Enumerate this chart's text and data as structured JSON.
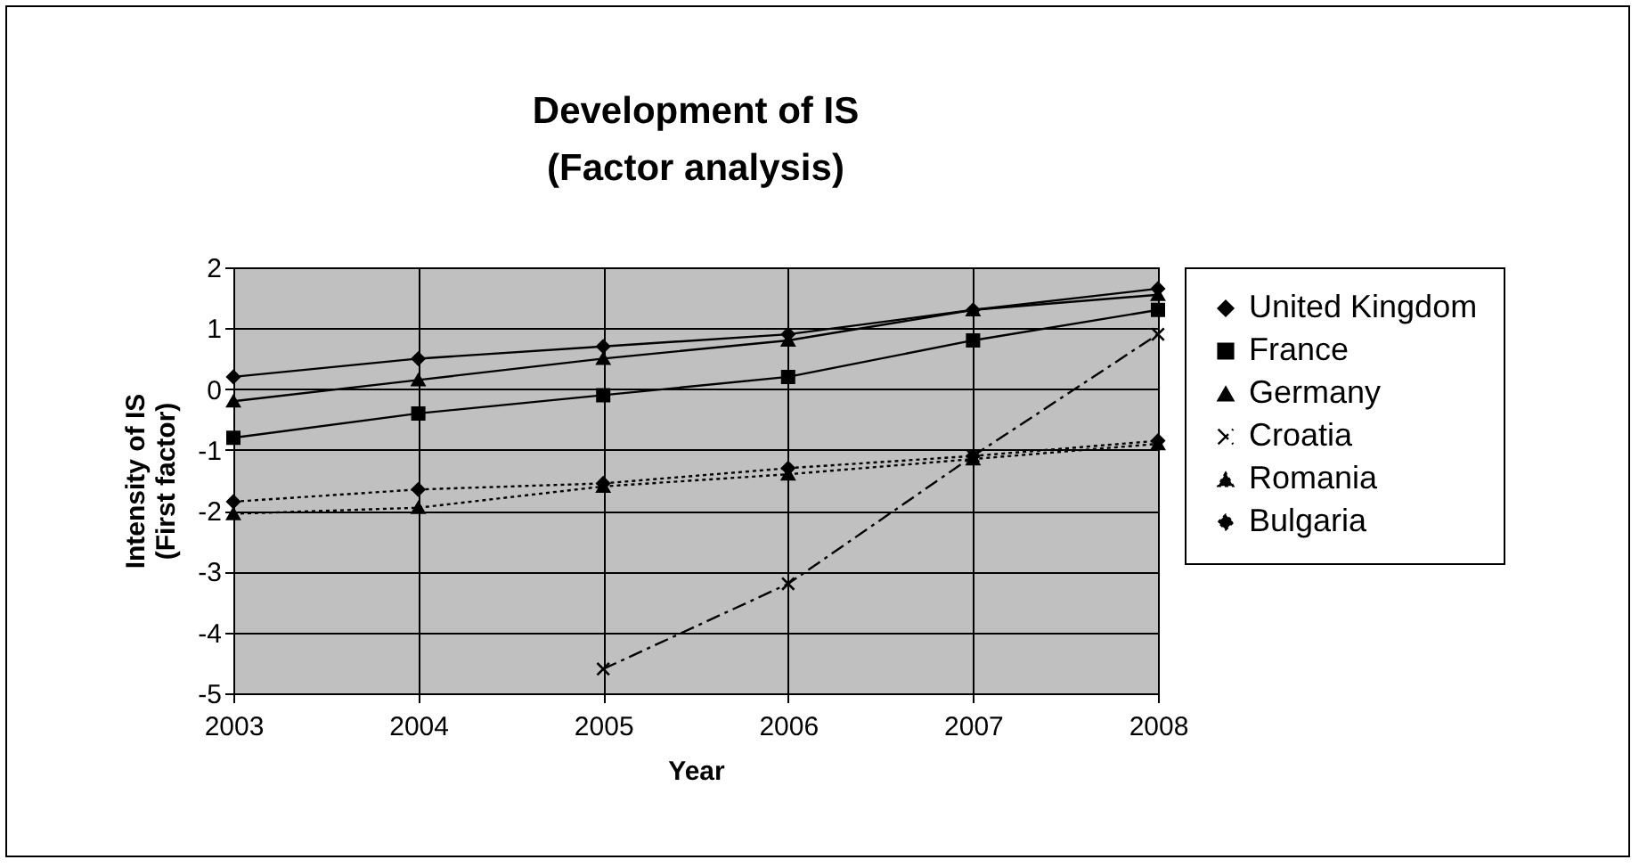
{
  "chart_data": {
    "type": "line",
    "title": "Development of IS\n(Factor analysis)",
    "xlabel": "Year",
    "ylabel": "Intensity of IS\n(First factor)",
    "categories": [
      "2003",
      "2004",
      "2005",
      "2006",
      "2007",
      "2008"
    ],
    "ylim": [
      -5,
      2
    ],
    "yticks": [
      -5,
      -4,
      -3,
      -2,
      -1,
      0,
      1,
      2
    ],
    "grid": true,
    "legend": "right",
    "series": [
      {
        "name": "United Kingdom",
        "color": "#000000",
        "marker": "diamond",
        "line_style": "solid",
        "values": [
          0.2,
          0.5,
          0.7,
          0.9,
          1.3,
          1.65
        ]
      },
      {
        "name": "France",
        "color": "#000000",
        "marker": "square",
        "line_style": "solid",
        "values": [
          -0.8,
          -0.4,
          -0.1,
          0.2,
          0.8,
          1.3
        ]
      },
      {
        "name": "Germany",
        "color": "#000000",
        "marker": "triangle",
        "line_style": "solid",
        "values": [
          -0.2,
          0.15,
          0.5,
          0.8,
          1.3,
          1.55
        ]
      },
      {
        "name": "Croatia",
        "color": "#000000",
        "marker": "cross",
        "line_style": "dashed",
        "values": [
          null,
          null,
          -4.6,
          -3.2,
          -1.1,
          0.9
        ]
      },
      {
        "name": "Romania",
        "color": "#000000",
        "marker": "triangle",
        "line_style": "dotted",
        "values": [
          -2.05,
          -1.95,
          -1.6,
          -1.4,
          -1.15,
          -0.9
        ]
      },
      {
        "name": "Bulgaria",
        "color": "#000000",
        "marker": "diamond",
        "line_style": "dotted",
        "values": [
          -1.85,
          -1.65,
          -1.55,
          -1.3,
          -1.1,
          -0.85
        ]
      }
    ]
  }
}
